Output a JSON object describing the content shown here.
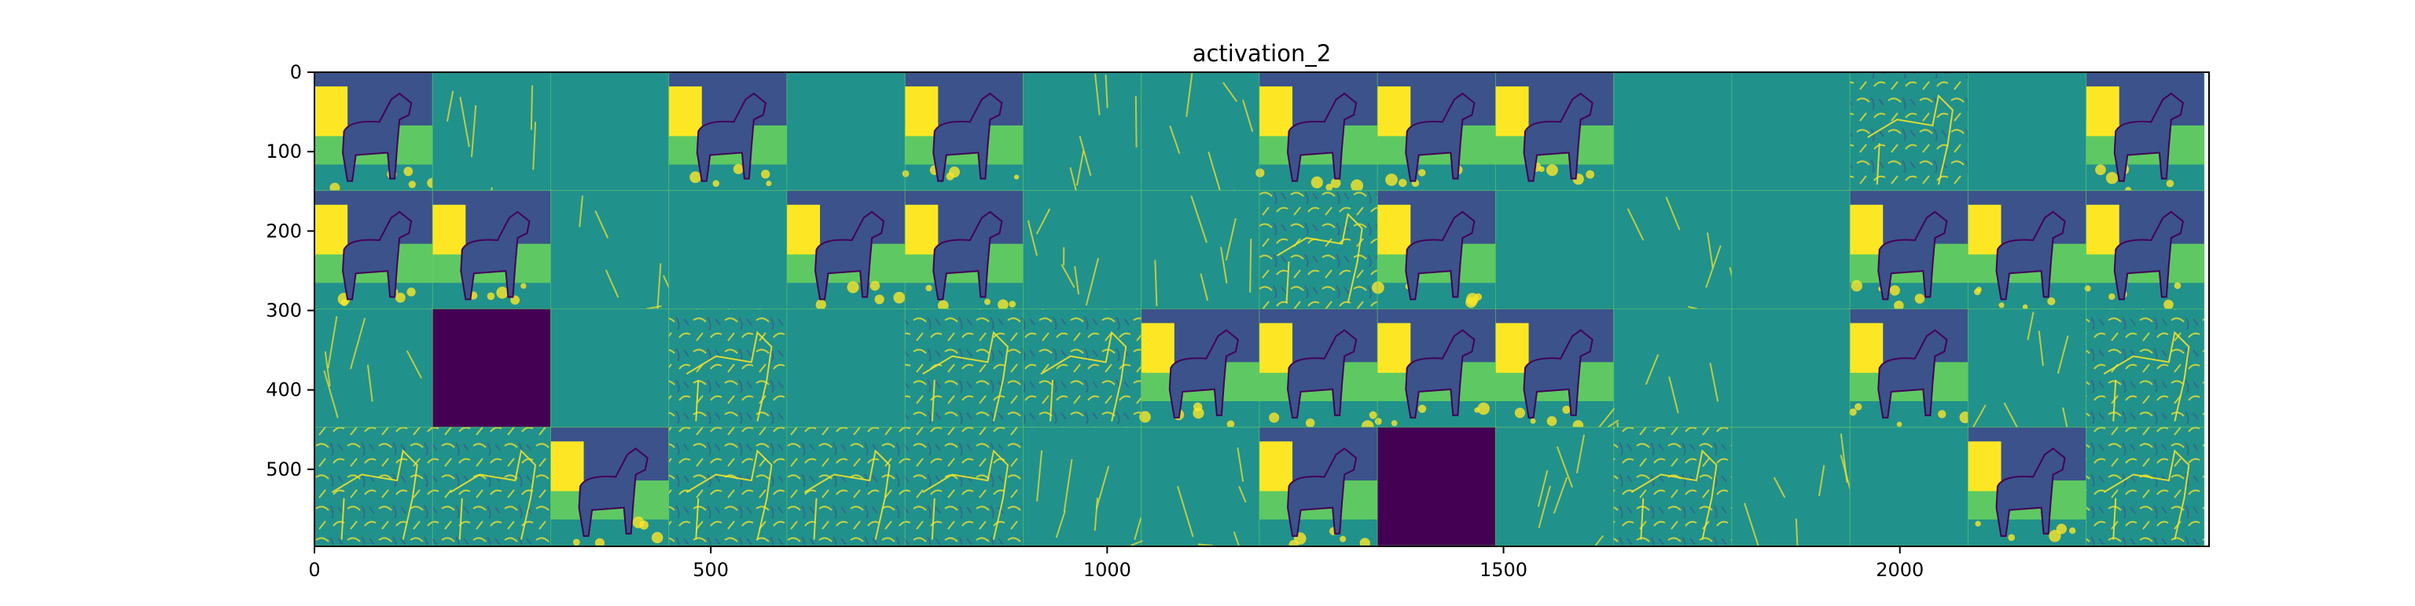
{
  "chart_data": {
    "type": "heatmap",
    "title": "activation_2",
    "xlabel": "",
    "ylabel": "",
    "xlim": [
      0,
      2390
    ],
    "ylim": [
      597,
      0
    ],
    "xticks": [
      0,
      500,
      1000,
      1500,
      2000
    ],
    "yticks": [
      0,
      100,
      200,
      300,
      400,
      500
    ],
    "grid": false,
    "tile_size": 149,
    "grid_rows": 4,
    "grid_cols": 16,
    "colormap": [
      "#440154",
      "#3b528b",
      "#21918c",
      "#5ec962",
      "#fde725"
    ],
    "tiles": [
      [
        "image",
        "sparse",
        "flat",
        "image",
        "flat",
        "image",
        "sparse",
        "sparse",
        "image",
        "image",
        "image",
        "flat",
        "flat",
        "edges",
        "flat",
        "image"
      ],
      [
        "image",
        "image",
        "sparse",
        "flat",
        "image",
        "image",
        "sparse",
        "sparse",
        "edges",
        "image",
        "flat",
        "sparse",
        "flat",
        "image",
        "image",
        "image"
      ],
      [
        "sparse",
        "dark",
        "flat",
        "edges",
        "flat",
        "edges",
        "edges",
        "image",
        "image",
        "image",
        "image",
        "sparse",
        "flat",
        "image",
        "sparse",
        "edges"
      ],
      [
        "edges",
        "edges",
        "image",
        "edges",
        "edges",
        "edges",
        "sparse",
        "sparse",
        "image",
        "dark",
        "sparse",
        "edges",
        "sparse",
        "flat",
        "image",
        "edges"
      ]
    ]
  }
}
